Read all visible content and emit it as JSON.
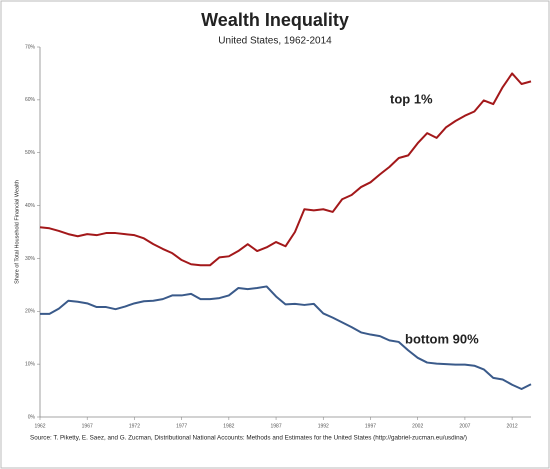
{
  "chart_data": {
    "type": "line",
    "title": "Wealth Inequality",
    "subtitle": "United States, 1962-2014",
    "y_label": "Share of Total Household Financial Wealth",
    "source": "Source: T. Piketty, E. Saez, and G. Zucman,  Distributional National Accounts: Methods and Estimates for the United States (http://gabriel-zucman.eu/usdina/)",
    "x": [
      1962,
      1963,
      1964,
      1965,
      1966,
      1967,
      1968,
      1969,
      1970,
      1971,
      1972,
      1973,
      1974,
      1975,
      1976,
      1977,
      1978,
      1979,
      1980,
      1981,
      1982,
      1983,
      1984,
      1985,
      1986,
      1987,
      1988,
      1989,
      1990,
      1991,
      1992,
      1993,
      1994,
      1995,
      1996,
      1997,
      1998,
      1999,
      2000,
      2001,
      2002,
      2003,
      2004,
      2005,
      2006,
      2007,
      2008,
      2009,
      2010,
      2011,
      2012,
      2013,
      2014
    ],
    "series": [
      {
        "name": "top 1%",
        "color": "#a3181a",
        "values": [
          35.9,
          35.7,
          35.2,
          34.6,
          34.2,
          34.6,
          34.4,
          34.8,
          34.8,
          34.6,
          34.4,
          33.8,
          32.7,
          31.8,
          31.0,
          29.7,
          28.9,
          28.7,
          28.7,
          30.2,
          30.4,
          31.4,
          32.7,
          31.4,
          32.1,
          33.1,
          32.3,
          35.0,
          39.3,
          39.1,
          39.3,
          38.8,
          41.2,
          42.0,
          43.5,
          44.4,
          45.9,
          47.3,
          49.0,
          49.5,
          51.8,
          53.7,
          52.8,
          54.8,
          56.0,
          57.0,
          57.8,
          59.9,
          59.2,
          62.4,
          65.0,
          63.0,
          63.5
        ]
      },
      {
        "name": "bottom 90%",
        "color": "#3a5a8a",
        "values": [
          19.5,
          19.5,
          20.5,
          22.0,
          21.8,
          21.5,
          20.8,
          20.8,
          20.4,
          20.9,
          21.5,
          21.9,
          22.0,
          22.3,
          23.0,
          23.0,
          23.3,
          22.3,
          22.3,
          22.5,
          23.0,
          24.4,
          24.2,
          24.4,
          24.7,
          22.8,
          21.3,
          21.4,
          21.2,
          21.4,
          19.6,
          18.8,
          17.9,
          17.0,
          16.0,
          15.6,
          15.3,
          14.5,
          14.2,
          12.6,
          11.2,
          10.3,
          10.1,
          10.0,
          9.9,
          9.9,
          9.7,
          9.0,
          7.4,
          7.1,
          6.1,
          5.3,
          6.2
        ]
      }
    ],
    "xlim": [
      1962,
      2014
    ],
    "xticks": [
      1962,
      1967,
      1972,
      1977,
      1982,
      1987,
      1992,
      1997,
      2002,
      2007,
      2012
    ],
    "ylim": [
      0,
      70
    ],
    "yticks": [
      {
        "value": 0,
        "label": "0%"
      },
      {
        "value": 10,
        "label": "10%"
      },
      {
        "value": 20,
        "label": "20%"
      },
      {
        "value": 30,
        "label": "30%"
      },
      {
        "value": 40,
        "label": "40%"
      },
      {
        "value": 50,
        "label": "50%"
      },
      {
        "value": 60,
        "label": "60%"
      },
      {
        "value": 70,
        "label": "70%"
      }
    ],
    "grid": false
  }
}
